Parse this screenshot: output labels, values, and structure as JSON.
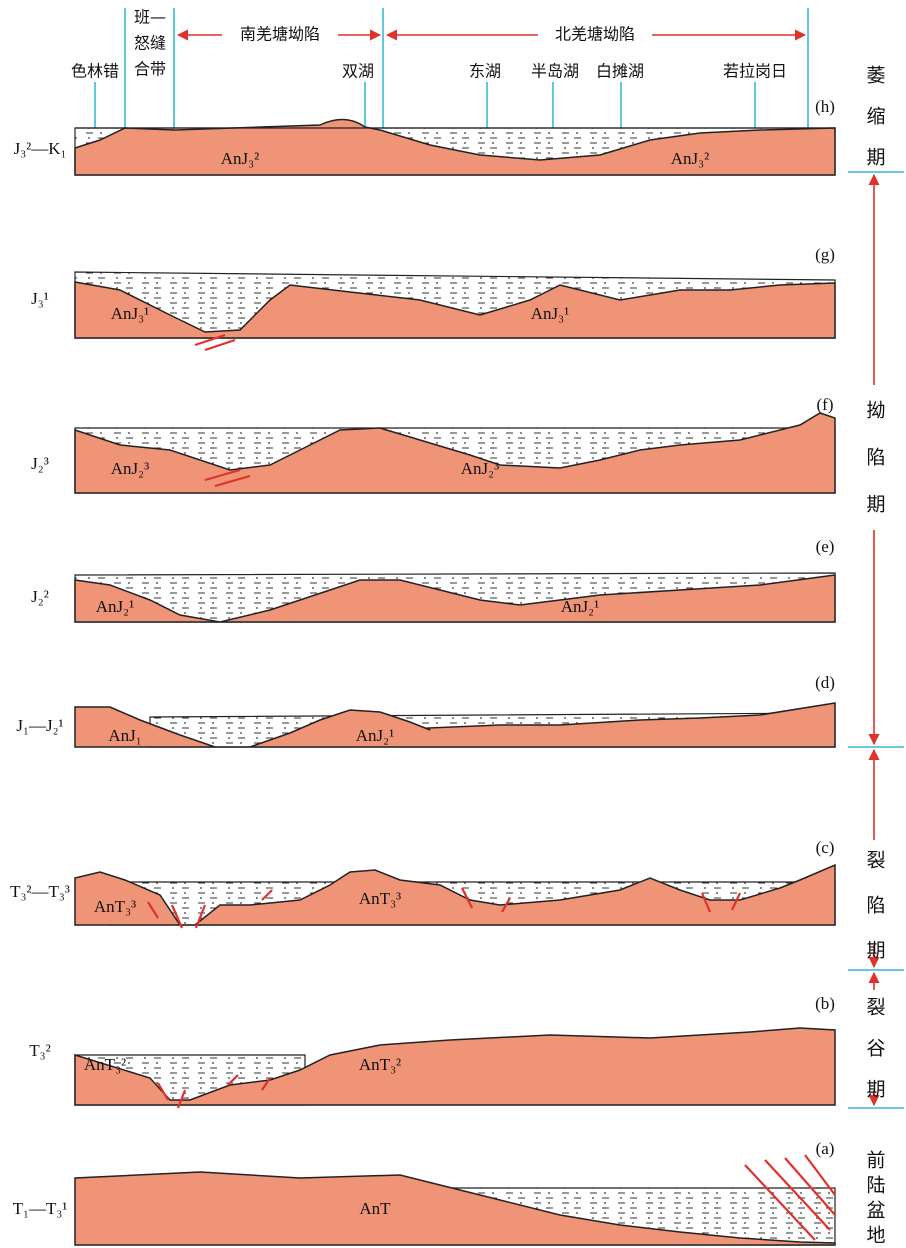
{
  "header": {
    "locations": [
      "色林错",
      "双湖",
      "东湖",
      "半岛湖",
      "白摊湖",
      "若拉岗日"
    ],
    "suture_zone": [
      "班—",
      "怒缝",
      "合带"
    ],
    "depressions": [
      "南羌塘坳陷",
      "北羌塘坳陷"
    ]
  },
  "panels": [
    {
      "id": "(h)",
      "strata": "J₃²—K₁",
      "units": [
        "AnJ₃²",
        "AnJ₃²"
      ]
    },
    {
      "id": "(g)",
      "strata": "J₃¹",
      "units": [
        "AnJ₃¹",
        "AnJ₃¹"
      ]
    },
    {
      "id": "(f)",
      "strata": "J₂³",
      "units": [
        "AnJ₂³",
        "AnJ₂³"
      ]
    },
    {
      "id": "(e)",
      "strata": "J₂²",
      "units": [
        "AnJ₂¹",
        "AnJ₂¹"
      ]
    },
    {
      "id": "(d)",
      "strata": "J₁—J₂¹",
      "units": [
        "AnJ₁",
        "AnJ₂¹"
      ]
    },
    {
      "id": "(c)",
      "strata": "T₃²—T₃³",
      "units": [
        "AnT₃³",
        "AnT₃³"
      ]
    },
    {
      "id": "(b)",
      "strata": "T₃²",
      "units": [
        "AnT₃²",
        "AnT₃²"
      ]
    },
    {
      "id": "(a)",
      "strata": "T₁—T₃¹",
      "units": [
        "AnT"
      ]
    }
  ],
  "stages": [
    "萎缩期",
    "拗陷期",
    "裂陷期",
    "裂谷期",
    "前陆盆地"
  ]
}
